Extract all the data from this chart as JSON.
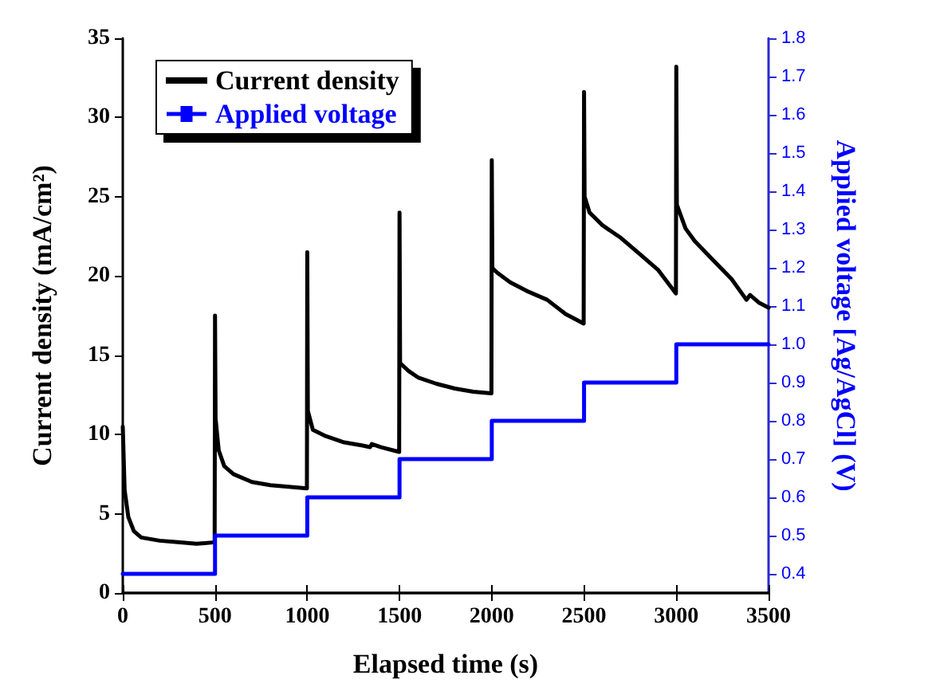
{
  "chart_data": {
    "type": "line",
    "xlabel": "Elapsed time (s)",
    "ylabel": "Current density (mA/cm²)",
    "y2label": "Applied voltage [Ag/AgCl] (V)",
    "xlim": [
      0,
      3500
    ],
    "xticks": [
      0,
      500,
      1000,
      1500,
      2000,
      2500,
      3000,
      3500
    ],
    "ylim": [
      0,
      35
    ],
    "yticks": [
      0,
      5,
      10,
      15,
      20,
      25,
      30,
      35
    ],
    "y2lim": [
      0.35,
      1.8
    ],
    "y2ticks": [
      {
        "value": 0.4,
        "label": "0.4"
      },
      {
        "value": 0.5,
        "label": "0.5"
      },
      {
        "value": 0.6,
        "label": "0.6"
      },
      {
        "value": 0.7,
        "label": "0.7"
      },
      {
        "value": 0.8,
        "label": "0.8"
      },
      {
        "value": 0.9,
        "label": "0.9"
      },
      {
        "value": 1.0,
        "label": "1.0"
      },
      {
        "value": 1.1,
        "label": "1.1"
      },
      {
        "value": 1.2,
        "label": "1.2"
      },
      {
        "value": 1.3,
        "label": "1.3"
      },
      {
        "value": 1.4,
        "label": "1.4"
      },
      {
        "value": 1.5,
        "label": "1.5"
      },
      {
        "value": 1.6,
        "label": "1.6"
      },
      {
        "value": 1.7,
        "label": "1.7"
      },
      {
        "value": 1.8,
        "label": "1.8"
      }
    ],
    "grid": false,
    "legend": "top left",
    "series": [
      {
        "name": "Current density",
        "color": "#000000",
        "type": "line",
        "x": [
          0,
          10,
          30,
          60,
          100,
          200,
          300,
          400,
          498,
          500,
          503,
          520,
          550,
          600,
          700,
          800,
          900,
          998,
          1000,
          1003,
          1030,
          1100,
          1200,
          1300,
          1340,
          1350,
          1400,
          1498,
          1500,
          1503,
          1550,
          1600,
          1700,
          1800,
          1900,
          1998,
          2000,
          2003,
          2030,
          2100,
          2200,
          2300,
          2400,
          2498,
          2500,
          2503,
          2530,
          2600,
          2700,
          2800,
          2900,
          2998,
          3000,
          3003,
          3050,
          3100,
          3200,
          3300,
          3380,
          3400,
          3450,
          3500
        ],
        "values": [
          10.5,
          6.5,
          4.8,
          3.9,
          3.5,
          3.3,
          3.2,
          3.1,
          3.2,
          17.5,
          11,
          9,
          8,
          7.5,
          7.0,
          6.8,
          6.7,
          6.6,
          21.5,
          11.5,
          10.3,
          9.9,
          9.5,
          9.3,
          9.2,
          9.4,
          9.2,
          8.9,
          24,
          14.5,
          14,
          13.6,
          13.2,
          12.9,
          12.7,
          12.6,
          27.3,
          20.5,
          20.2,
          19.6,
          19,
          18.5,
          17.6,
          17,
          31.6,
          25,
          24,
          23.2,
          22.4,
          21.4,
          20.4,
          18.9,
          33.2,
          24.5,
          23,
          22.2,
          21,
          19.8,
          18.5,
          18.8,
          18.3,
          18
        ]
      },
      {
        "name": "Applied voltage",
        "color": "#0000ff",
        "type": "step",
        "axis": "y2",
        "x": [
          0,
          500,
          1000,
          1500,
          2000,
          2500,
          3000,
          3500
        ],
        "values": [
          0.4,
          0.5,
          0.6,
          0.7,
          0.8,
          0.9,
          1.0,
          1.0
        ]
      }
    ]
  }
}
